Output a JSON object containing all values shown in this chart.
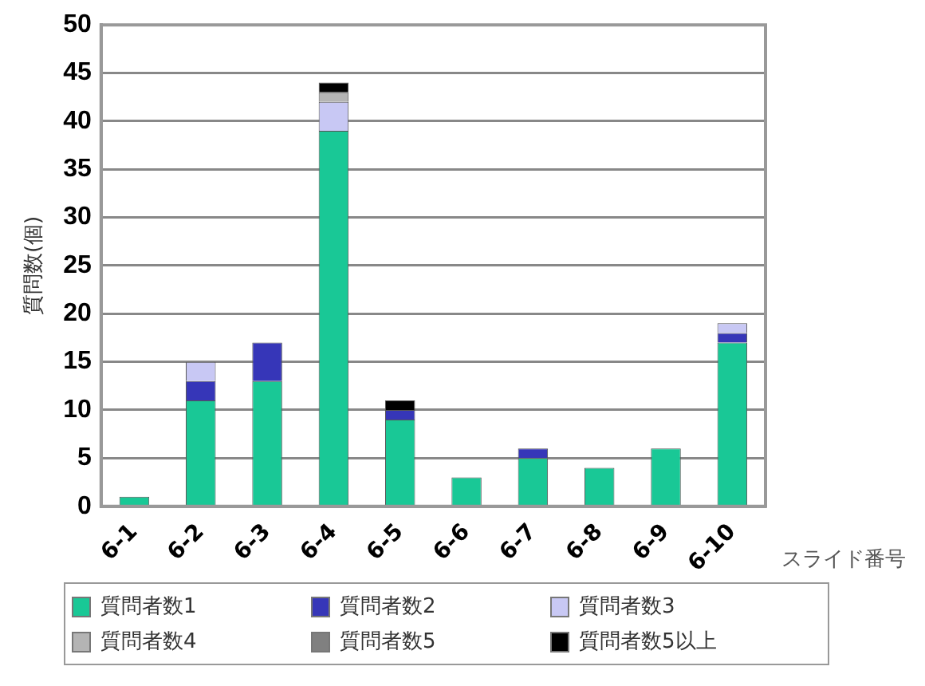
{
  "chart_data": {
    "type": "bar",
    "stacked": true,
    "ylabel": "質問数(個)",
    "xlabel": "スライド番号",
    "categories": [
      "6-1",
      "6-2",
      "6-3",
      "6-4",
      "6-5",
      "6-6",
      "6-7",
      "6-8",
      "6-9",
      "6-10"
    ],
    "series": [
      {
        "name": "質問者数1",
        "color": "#19c896",
        "values": [
          1,
          11,
          13,
          39,
          9,
          3,
          5,
          4,
          6,
          17
        ]
      },
      {
        "name": "質問者数2",
        "color": "#3636b8",
        "values": [
          0,
          2,
          4,
          0,
          1,
          0,
          1,
          0,
          0,
          1
        ]
      },
      {
        "name": "質問者数3",
        "color": "#c8c8f4",
        "values": [
          0,
          2,
          0,
          3,
          0,
          0,
          0,
          0,
          0,
          1
        ]
      },
      {
        "name": "質問者数4",
        "color": "#b4b4b4",
        "values": [
          0,
          0,
          0,
          1,
          0,
          0,
          0,
          0,
          0,
          0
        ]
      },
      {
        "name": "質問者数5",
        "color": "#808080",
        "values": [
          0,
          0,
          0,
          0,
          0,
          0,
          0,
          0,
          0,
          0
        ]
      },
      {
        "name": "質問者数5以上",
        "color": "#000000",
        "values": [
          0,
          0,
          0,
          1,
          1,
          0,
          0,
          0,
          0,
          0
        ]
      }
    ],
    "ylim": [
      0,
      50
    ],
    "yticks": [
      0,
      5,
      10,
      15,
      20,
      25,
      30,
      35,
      40,
      45,
      50
    ],
    "grid": "y",
    "legend": "bottom"
  }
}
